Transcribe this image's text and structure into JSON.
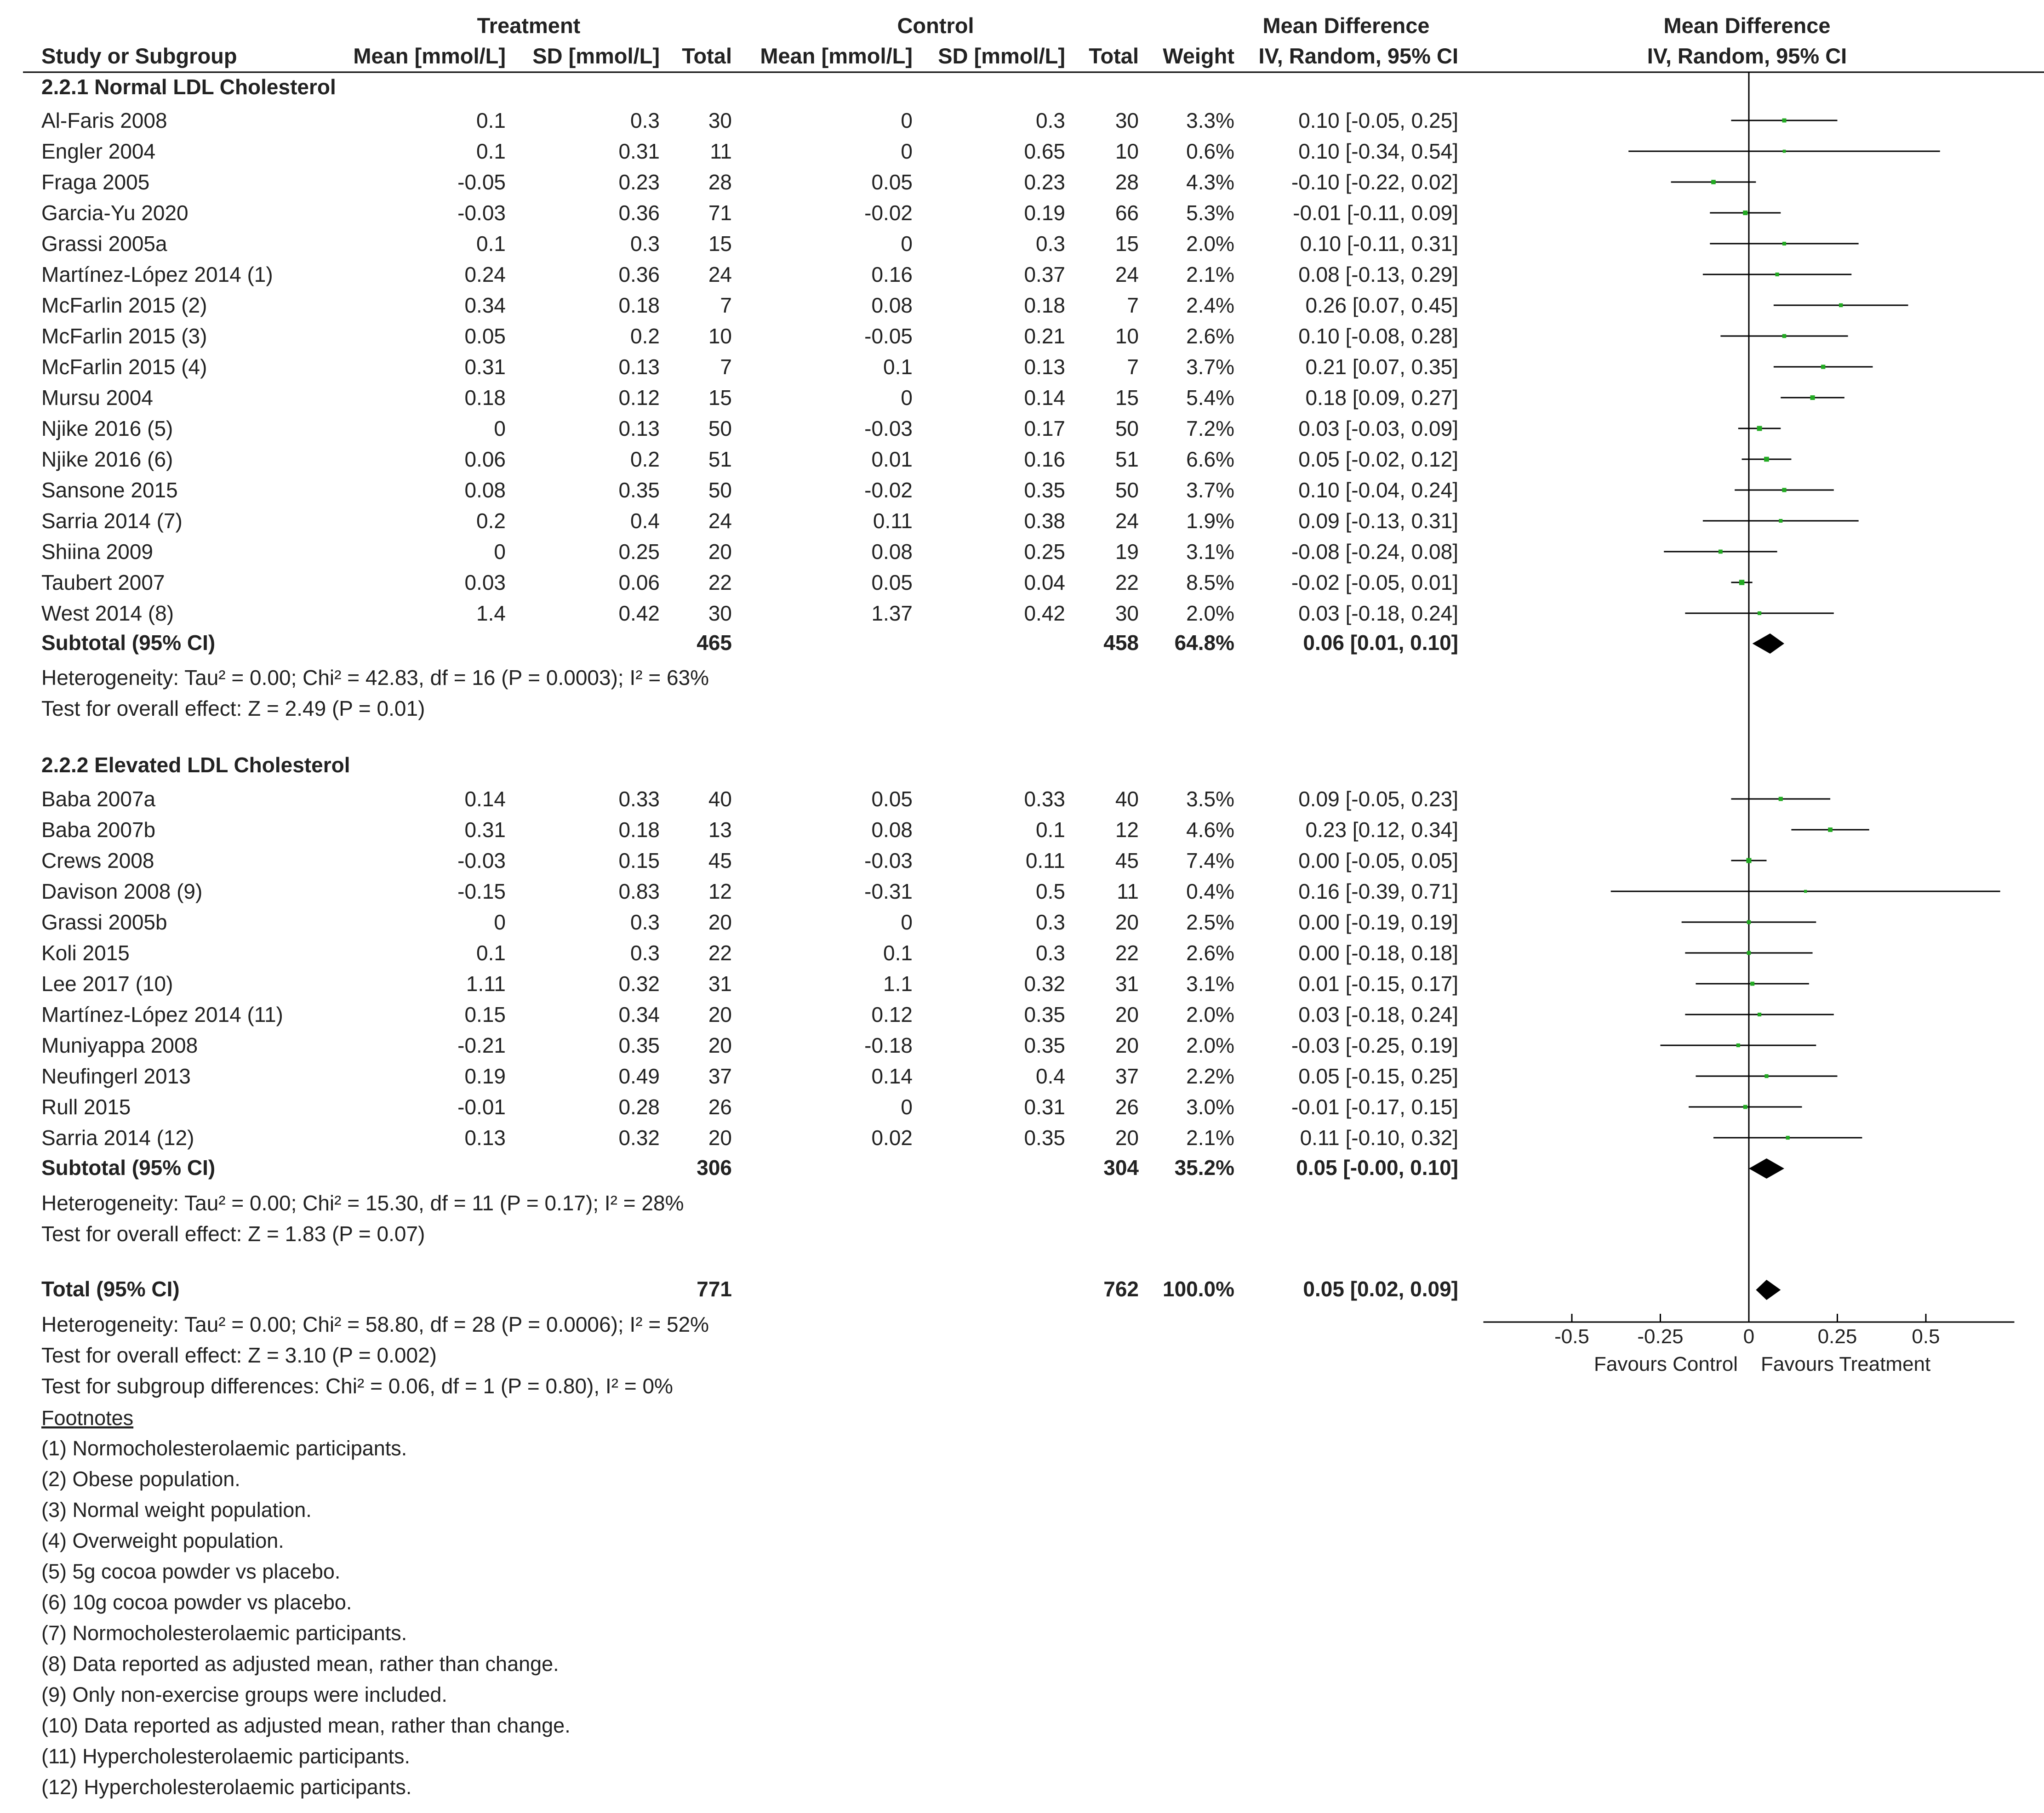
{
  "chart_data": {
    "type": "forest",
    "header": {
      "treatment_group": "Treatment",
      "control_group": "Control",
      "md_group": "Mean Difference",
      "plot_group": "Mean Difference",
      "study": "Study or Subgroup",
      "t_mean": "Mean [mmol/L]",
      "t_sd": "SD [mmol/L]",
      "t_total": "Total",
      "c_mean": "Mean [mmol/L]",
      "c_sd": "SD [mmol/L]",
      "c_total": "Total",
      "weight": "Weight",
      "md_method": "IV, Random, 95% CI",
      "plot_method": "IV, Random, 95% CI"
    },
    "subgroups": [
      {
        "title": "2.2.1 Normal LDL Cholesterol",
        "studies": [
          {
            "study": "Al-Faris 2008",
            "t_mean": "0.1",
            "t_sd": "0.3",
            "t_total": "30",
            "c_mean": "0",
            "c_sd": "0.3",
            "c_total": "30",
            "weight": "3.3%",
            "ci": "0.10 [-0.05, 0.25]",
            "md": 0.1,
            "lo": -0.05,
            "hi": 0.25,
            "w": 3.3
          },
          {
            "study": "Engler 2004",
            "t_mean": "0.1",
            "t_sd": "0.31",
            "t_total": "11",
            "c_mean": "0",
            "c_sd": "0.65",
            "c_total": "10",
            "weight": "0.6%",
            "ci": "0.10 [-0.34, 0.54]",
            "md": 0.1,
            "lo": -0.34,
            "hi": 0.54,
            "w": 0.6
          },
          {
            "study": "Fraga 2005",
            "t_mean": "-0.05",
            "t_sd": "0.23",
            "t_total": "28",
            "c_mean": "0.05",
            "c_sd": "0.23",
            "c_total": "28",
            "weight": "4.3%",
            "ci": "-0.10 [-0.22, 0.02]",
            "md": -0.1,
            "lo": -0.22,
            "hi": 0.02,
            "w": 4.3
          },
          {
            "study": "Garcia-Yu 2020",
            "t_mean": "-0.03",
            "t_sd": "0.36",
            "t_total": "71",
            "c_mean": "-0.02",
            "c_sd": "0.19",
            "c_total": "66",
            "weight": "5.3%",
            "ci": "-0.01 [-0.11, 0.09]",
            "md": -0.01,
            "lo": -0.11,
            "hi": 0.09,
            "w": 5.3
          },
          {
            "study": "Grassi 2005a",
            "t_mean": "0.1",
            "t_sd": "0.3",
            "t_total": "15",
            "c_mean": "0",
            "c_sd": "0.3",
            "c_total": "15",
            "weight": "2.0%",
            "ci": "0.10 [-0.11, 0.31]",
            "md": 0.1,
            "lo": -0.11,
            "hi": 0.31,
            "w": 2.0
          },
          {
            "study": "Martínez-López 2014 (1)",
            "t_mean": "0.24",
            "t_sd": "0.36",
            "t_total": "24",
            "c_mean": "0.16",
            "c_sd": "0.37",
            "c_total": "24",
            "weight": "2.1%",
            "ci": "0.08 [-0.13, 0.29]",
            "md": 0.08,
            "lo": -0.13,
            "hi": 0.29,
            "w": 2.1
          },
          {
            "study": "McFarlin 2015 (2)",
            "t_mean": "0.34",
            "t_sd": "0.18",
            "t_total": "7",
            "c_mean": "0.08",
            "c_sd": "0.18",
            "c_total": "7",
            "weight": "2.4%",
            "ci": "0.26 [0.07, 0.45]",
            "md": 0.26,
            "lo": 0.07,
            "hi": 0.45,
            "w": 2.4
          },
          {
            "study": "McFarlin 2015 (3)",
            "t_mean": "0.05",
            "t_sd": "0.2",
            "t_total": "10",
            "c_mean": "-0.05",
            "c_sd": "0.21",
            "c_total": "10",
            "weight": "2.6%",
            "ci": "0.10 [-0.08, 0.28]",
            "md": 0.1,
            "lo": -0.08,
            "hi": 0.28,
            "w": 2.6
          },
          {
            "study": "McFarlin 2015 (4)",
            "t_mean": "0.31",
            "t_sd": "0.13",
            "t_total": "7",
            "c_mean": "0.1",
            "c_sd": "0.13",
            "c_total": "7",
            "weight": "3.7%",
            "ci": "0.21 [0.07, 0.35]",
            "md": 0.21,
            "lo": 0.07,
            "hi": 0.35,
            "w": 3.7
          },
          {
            "study": "Mursu 2004",
            "t_mean": "0.18",
            "t_sd": "0.12",
            "t_total": "15",
            "c_mean": "0",
            "c_sd": "0.14",
            "c_total": "15",
            "weight": "5.4%",
            "ci": "0.18 [0.09, 0.27]",
            "md": 0.18,
            "lo": 0.09,
            "hi": 0.27,
            "w": 5.4
          },
          {
            "study": "Njike 2016 (5)",
            "t_mean": "0",
            "t_sd": "0.13",
            "t_total": "50",
            "c_mean": "-0.03",
            "c_sd": "0.17",
            "c_total": "50",
            "weight": "7.2%",
            "ci": "0.03 [-0.03, 0.09]",
            "md": 0.03,
            "lo": -0.03,
            "hi": 0.09,
            "w": 7.2
          },
          {
            "study": "Njike 2016 (6)",
            "t_mean": "0.06",
            "t_sd": "0.2",
            "t_total": "51",
            "c_mean": "0.01",
            "c_sd": "0.16",
            "c_total": "51",
            "weight": "6.6%",
            "ci": "0.05 [-0.02, 0.12]",
            "md": 0.05,
            "lo": -0.02,
            "hi": 0.12,
            "w": 6.6
          },
          {
            "study": "Sansone 2015",
            "t_mean": "0.08",
            "t_sd": "0.35",
            "t_total": "50",
            "c_mean": "-0.02",
            "c_sd": "0.35",
            "c_total": "50",
            "weight": "3.7%",
            "ci": "0.10 [-0.04, 0.24]",
            "md": 0.1,
            "lo": -0.04,
            "hi": 0.24,
            "w": 3.7
          },
          {
            "study": "Sarria 2014 (7)",
            "t_mean": "0.2",
            "t_sd": "0.4",
            "t_total": "24",
            "c_mean": "0.11",
            "c_sd": "0.38",
            "c_total": "24",
            "weight": "1.9%",
            "ci": "0.09 [-0.13, 0.31]",
            "md": 0.09,
            "lo": -0.13,
            "hi": 0.31,
            "w": 1.9
          },
          {
            "study": "Shiina 2009",
            "t_mean": "0",
            "t_sd": "0.25",
            "t_total": "20",
            "c_mean": "0.08",
            "c_sd": "0.25",
            "c_total": "19",
            "weight": "3.1%",
            "ci": "-0.08 [-0.24, 0.08]",
            "md": -0.08,
            "lo": -0.24,
            "hi": 0.08,
            "w": 3.1
          },
          {
            "study": "Taubert 2007",
            "t_mean": "0.03",
            "t_sd": "0.06",
            "t_total": "22",
            "c_mean": "0.05",
            "c_sd": "0.04",
            "c_total": "22",
            "weight": "8.5%",
            "ci": "-0.02 [-0.05, 0.01]",
            "md": -0.02,
            "lo": -0.05,
            "hi": 0.01,
            "w": 8.5
          },
          {
            "study": "West 2014 (8)",
            "t_mean": "1.4",
            "t_sd": "0.42",
            "t_total": "30",
            "c_mean": "1.37",
            "c_sd": "0.42",
            "c_total": "30",
            "weight": "2.0%",
            "ci": "0.03 [-0.18, 0.24]",
            "md": 0.03,
            "lo": -0.18,
            "hi": 0.24,
            "w": 2.0
          }
        ],
        "subtotal": {
          "label": "Subtotal (95% CI)",
          "t_total": "465",
          "c_total": "458",
          "weight": "64.8%",
          "ci": "0.06 [0.01, 0.10]",
          "md": 0.06,
          "lo": 0.01,
          "hi": 0.1
        },
        "heterogeneity": "Heterogeneity: Tau² = 0.00; Chi² = 42.83, df = 16 (P = 0.0003); I² = 63%",
        "overall": "Test for overall effect: Z = 2.49 (P = 0.01)"
      },
      {
        "title": "2.2.2 Elevated LDL Cholesterol",
        "studies": [
          {
            "study": "Baba 2007a",
            "t_mean": "0.14",
            "t_sd": "0.33",
            "t_total": "40",
            "c_mean": "0.05",
            "c_sd": "0.33",
            "c_total": "40",
            "weight": "3.5%",
            "ci": "0.09 [-0.05, 0.23]",
            "md": 0.09,
            "lo": -0.05,
            "hi": 0.23,
            "w": 3.5
          },
          {
            "study": "Baba 2007b",
            "t_mean": "0.31",
            "t_sd": "0.18",
            "t_total": "13",
            "c_mean": "0.08",
            "c_sd": "0.1",
            "c_total": "12",
            "weight": "4.6%",
            "ci": "0.23 [0.12, 0.34]",
            "md": 0.23,
            "lo": 0.12,
            "hi": 0.34,
            "w": 4.6
          },
          {
            "study": "Crews 2008",
            "t_mean": "-0.03",
            "t_sd": "0.15",
            "t_total": "45",
            "c_mean": "-0.03",
            "c_sd": "0.11",
            "c_total": "45",
            "weight": "7.4%",
            "ci": "0.00 [-0.05, 0.05]",
            "md": 0.0,
            "lo": -0.05,
            "hi": 0.05,
            "w": 7.4
          },
          {
            "study": "Davison 2008 (9)",
            "t_mean": "-0.15",
            "t_sd": "0.83",
            "t_total": "12",
            "c_mean": "-0.31",
            "c_sd": "0.5",
            "c_total": "11",
            "weight": "0.4%",
            "ci": "0.16 [-0.39, 0.71]",
            "md": 0.16,
            "lo": -0.39,
            "hi": 0.71,
            "w": 0.4
          },
          {
            "study": "Grassi 2005b",
            "t_mean": "0",
            "t_sd": "0.3",
            "t_total": "20",
            "c_mean": "0",
            "c_sd": "0.3",
            "c_total": "20",
            "weight": "2.5%",
            "ci": "0.00 [-0.19, 0.19]",
            "md": 0.0,
            "lo": -0.19,
            "hi": 0.19,
            "w": 2.5
          },
          {
            "study": "Koli 2015",
            "t_mean": "0.1",
            "t_sd": "0.3",
            "t_total": "22",
            "c_mean": "0.1",
            "c_sd": "0.3",
            "c_total": "22",
            "weight": "2.6%",
            "ci": "0.00 [-0.18, 0.18]",
            "md": 0.0,
            "lo": -0.18,
            "hi": 0.18,
            "w": 2.6
          },
          {
            "study": "Lee 2017 (10)",
            "t_mean": "1.11",
            "t_sd": "0.32",
            "t_total": "31",
            "c_mean": "1.1",
            "c_sd": "0.32",
            "c_total": "31",
            "weight": "3.1%",
            "ci": "0.01 [-0.15, 0.17]",
            "md": 0.01,
            "lo": -0.15,
            "hi": 0.17,
            "w": 3.1
          },
          {
            "study": "Martínez-López 2014 (11)",
            "t_mean": "0.15",
            "t_sd": "0.34",
            "t_total": "20",
            "c_mean": "0.12",
            "c_sd": "0.35",
            "c_total": "20",
            "weight": "2.0%",
            "ci": "0.03 [-0.18, 0.24]",
            "md": 0.03,
            "lo": -0.18,
            "hi": 0.24,
            "w": 2.0
          },
          {
            "study": "Muniyappa 2008",
            "t_mean": "-0.21",
            "t_sd": "0.35",
            "t_total": "20",
            "c_mean": "-0.18",
            "c_sd": "0.35",
            "c_total": "20",
            "weight": "2.0%",
            "ci": "-0.03 [-0.25, 0.19]",
            "md": -0.03,
            "lo": -0.25,
            "hi": 0.19,
            "w": 2.0
          },
          {
            "study": "Neufingerl 2013",
            "t_mean": "0.19",
            "t_sd": "0.49",
            "t_total": "37",
            "c_mean": "0.14",
            "c_sd": "0.4",
            "c_total": "37",
            "weight": "2.2%",
            "ci": "0.05 [-0.15, 0.25]",
            "md": 0.05,
            "lo": -0.15,
            "hi": 0.25,
            "w": 2.2
          },
          {
            "study": "Rull 2015",
            "t_mean": "-0.01",
            "t_sd": "0.28",
            "t_total": "26",
            "c_mean": "0",
            "c_sd": "0.31",
            "c_total": "26",
            "weight": "3.0%",
            "ci": "-0.01 [-0.17, 0.15]",
            "md": -0.01,
            "lo": -0.17,
            "hi": 0.15,
            "w": 3.0
          },
          {
            "study": "Sarria 2014 (12)",
            "t_mean": "0.13",
            "t_sd": "0.32",
            "t_total": "20",
            "c_mean": "0.02",
            "c_sd": "0.35",
            "c_total": "20",
            "weight": "2.1%",
            "ci": "0.11 [-0.10, 0.32]",
            "md": 0.11,
            "lo": -0.1,
            "hi": 0.32,
            "w": 2.1
          }
        ],
        "subtotal": {
          "label": "Subtotal (95% CI)",
          "t_total": "306",
          "c_total": "304",
          "weight": "35.2%",
          "ci": "0.05 [-0.00, 0.10]",
          "md": 0.05,
          "lo": 0.0,
          "hi": 0.1
        },
        "heterogeneity": "Heterogeneity: Tau² = 0.00; Chi² = 15.30, df = 11 (P = 0.17); I² = 28%",
        "overall": "Test for overall effect: Z = 1.83 (P = 0.07)"
      }
    ],
    "total": {
      "label": "Total (95% CI)",
      "t_total": "771",
      "c_total": "762",
      "weight": "100.0%",
      "ci": "0.05 [0.02, 0.09]",
      "md": 0.05,
      "lo": 0.02,
      "hi": 0.09
    },
    "total_heterogeneity": "Heterogeneity: Tau² = 0.00; Chi² = 58.80, df = 28 (P = 0.0006); I² = 52%",
    "total_overall": "Test for overall effect: Z = 3.10 (P = 0.002)",
    "subgroup_diff": "Test for subgroup differences: Chi² = 0.06, df = 1 (P = 0.80), I² = 0%",
    "axis": {
      "ticks": [
        -0.5,
        -0.25,
        0,
        0.25,
        0.5
      ],
      "tick_labels": [
        "-0.5",
        "-0.25",
        "0",
        "0.25",
        "0.5"
      ],
      "xlim": [
        -0.75,
        0.75
      ]
    },
    "favours_left": "Favours Control",
    "favours_right": "Favours Treatment",
    "footnotes_title": "Footnotes",
    "footnotes": [
      "(1) Normocholesterolaemic participants.",
      "(2) Obese population.",
      "(3) Normal weight population.",
      "(4) Overweight population.",
      "(5) 5g cocoa powder vs placebo.",
      "(6) 10g cocoa powder vs placebo.",
      "(7) Normocholesterolaemic participants.",
      "(8) Data reported as adjusted mean, rather than change.",
      "(9) Only non-exercise groups were included.",
      "(10) Data reported as adjusted mean, rather than change.",
      "(11) Hypercholesterolaemic participants.",
      "(12) Hypercholesterolaemic participants."
    ],
    "colors": {
      "point": "#22aa22",
      "line": "#000000",
      "text": "#222222"
    }
  }
}
